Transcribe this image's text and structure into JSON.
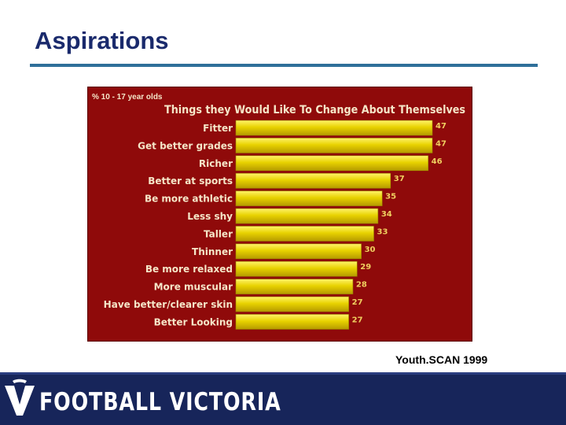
{
  "slide": {
    "title": "Aspirations",
    "source": "Youth.SCAN 1999"
  },
  "footer": {
    "logo_text": "FOOTBALL VICTORIA"
  },
  "colors": {
    "panel_bg": "#8f0a0a",
    "bar_fill": "#e8d200",
    "bar_highlight": "#fff36a",
    "label_text": "#f5e6c8",
    "value_text": "#f0d060"
  },
  "chart_data": {
    "type": "bar",
    "orientation": "horizontal",
    "subtitle": "% 10 - 17 year olds",
    "title": "Things they Would Like To Change About Themselves",
    "categories": [
      "Fitter",
      "Get better grades",
      "Richer",
      "Better at sports",
      "Be more athletic",
      "Less shy",
      "Taller",
      "Thinner",
      "Be more relaxed",
      "More muscular",
      "Have better/clearer skin",
      "Better Looking"
    ],
    "values": [
      47,
      47,
      46,
      37,
      35,
      34,
      33,
      30,
      29,
      28,
      27,
      27
    ],
    "xlim": [
      0,
      47
    ],
    "grid": false,
    "legend": "none"
  }
}
